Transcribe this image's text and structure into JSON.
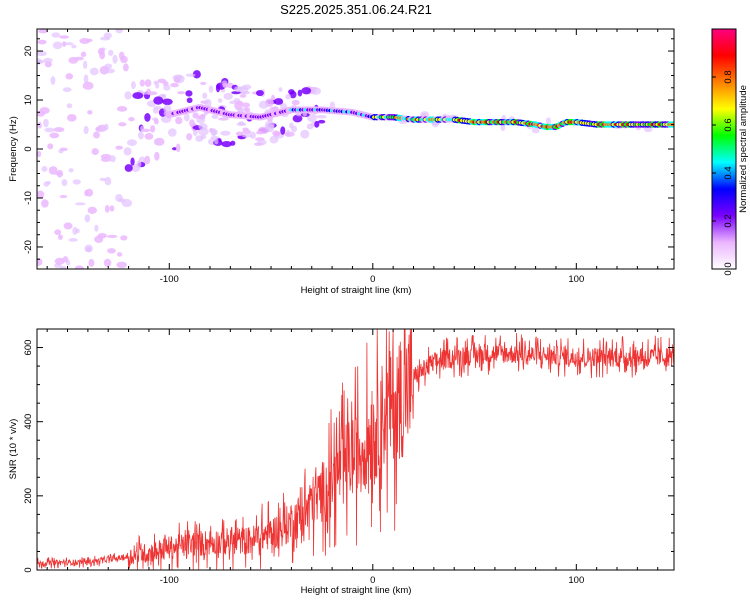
{
  "title": "S225.2025.351.06.24.R21",
  "chart_data": [
    {
      "type": "heatmap",
      "xlabel": "Height of straight line (km)",
      "ylabel": "Frequency (Hz)",
      "xlim": [
        -165,
        148
      ],
      "ylim": [
        -24.5,
        24.5
      ],
      "xticks": [
        -100,
        0,
        100
      ],
      "yticks": [
        -20,
        -10,
        0,
        10,
        20
      ],
      "colorbar": {
        "label": "Normalized spectral amplitude",
        "range": [
          0,
          1
        ],
        "ticks": [
          0.0,
          0.2,
          0.4,
          0.6,
          0.8
        ],
        "colormap": [
          "#ffffff",
          "#ebb6ff",
          "#7a00ff",
          "#0000ff",
          "#00ffff",
          "#00ff00",
          "#ffff00",
          "#ff8000",
          "#ff0000",
          "#ff0080"
        ]
      },
      "ridge": {
        "x": [
          -140,
          -120,
          -100,
          -85,
          -70,
          -55,
          -40,
          -25,
          -10,
          0,
          10,
          20,
          30,
          40,
          50,
          60,
          70,
          80,
          85,
          90,
          95,
          100,
          110,
          120,
          130,
          140,
          148
        ],
        "freq": [
          1.5,
          4.0,
          7.0,
          8.5,
          7.0,
          6.5,
          8.0,
          8.0,
          7.5,
          6.5,
          6.5,
          6.0,
          6.0,
          6.0,
          5.5,
          5.5,
          5.5,
          5.0,
          4.5,
          4.5,
          5.5,
          5.5,
          5.0,
          5.0,
          5.0,
          5.0,
          5.0
        ]
      }
    },
    {
      "type": "line",
      "xlabel": "Height of straight line (km)",
      "ylabel": "SNR (10 * v/v)",
      "xlim": [
        -165,
        148
      ],
      "ylim": [
        0,
        650
      ],
      "xticks": [
        -100,
        0,
        100
      ],
      "yticks": [
        0,
        200,
        400,
        600
      ],
      "color": "#ee3333",
      "trend": {
        "x": [
          -165,
          -140,
          -120,
          -100,
          -80,
          -60,
          -45,
          -35,
          -25,
          -15,
          -5,
          5,
          15,
          20,
          30,
          40,
          60,
          80,
          100,
          120,
          148
        ],
        "y": [
          18,
          22,
          35,
          60,
          75,
          80,
          110,
          150,
          210,
          280,
          330,
          420,
          470,
          520,
          560,
          575,
          585,
          580,
          575,
          575,
          575
        ]
      }
    }
  ]
}
